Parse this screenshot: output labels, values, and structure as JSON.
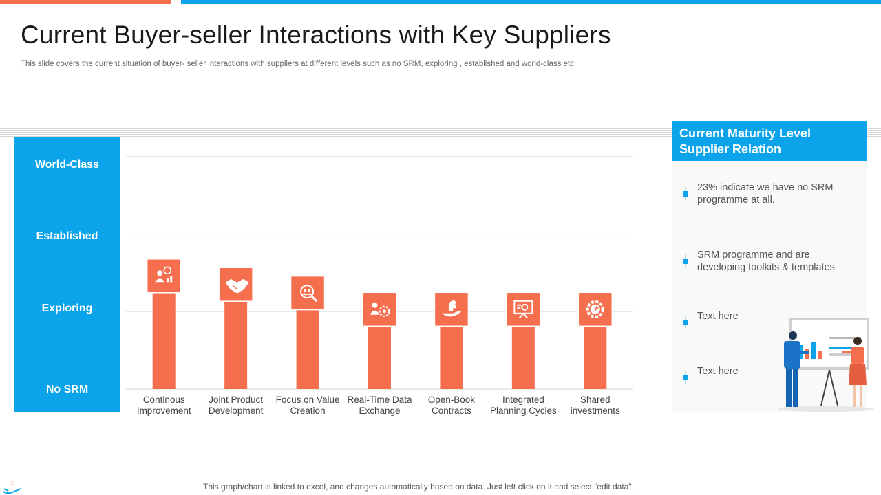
{
  "title": "Current Buyer-seller Interactions with Key Suppliers",
  "subtitle": "This slide covers  the current situation of buyer- seller interactions with suppliers at different levels such as no SRM,  exploring , established and world-class etc.",
  "levels": [
    "World-Class",
    "Established",
    "Exploring",
    "No SRM"
  ],
  "chart_data": {
    "type": "bar",
    "categories": [
      "Continous Improvement",
      "Joint Product Development",
      "Focus on Value Creation",
      "Real-Time Data Exchange",
      "Open-Book Contracts",
      "Integrated Planning Cycles",
      "Shared investments"
    ],
    "category_lines": [
      [
        "Continous",
        "Improvement"
      ],
      [
        "Joint Product",
        "Development"
      ],
      [
        "Focus on Value",
        "Creation"
      ],
      [
        "Real-Time Data",
        "Exchange"
      ],
      [
        "Open-Book",
        "Contracts"
      ],
      [
        "Integrated",
        "Planning Cycles"
      ],
      [
        "Shared",
        "investments"
      ]
    ],
    "values": [
      1.46,
      1.35,
      1.24,
      1.03,
      1.03,
      1.03,
      1.03
    ],
    "icons": [
      "team-idea-icon",
      "handshake-icon",
      "people-search-icon",
      "person-gear-icon",
      "hand-chess-knight-icon",
      "presentation-board-icon",
      "gear-rocket-icon"
    ],
    "ylim": [
      0,
      3.2
    ],
    "gridlines": [
      1,
      2,
      3
    ],
    "bar_color": "#f56f4f",
    "grid": true
  },
  "side_panel": {
    "title_line1": "Current Maturity Level",
    "title_line2": "Supplier Relation",
    "bullets": [
      "23% indicate we have no SRM programme at all.",
      "SRM programme and are developing toolkits & templates",
      "Text here",
      "Text here"
    ]
  },
  "footer": "This graph/chart is linked to excel, and changes automatically based on data. Just left click on it and select “edit data”.",
  "page_number": "5",
  "colors": {
    "accent_blue": "#0ba4ea",
    "accent_orange": "#f56f4f"
  }
}
